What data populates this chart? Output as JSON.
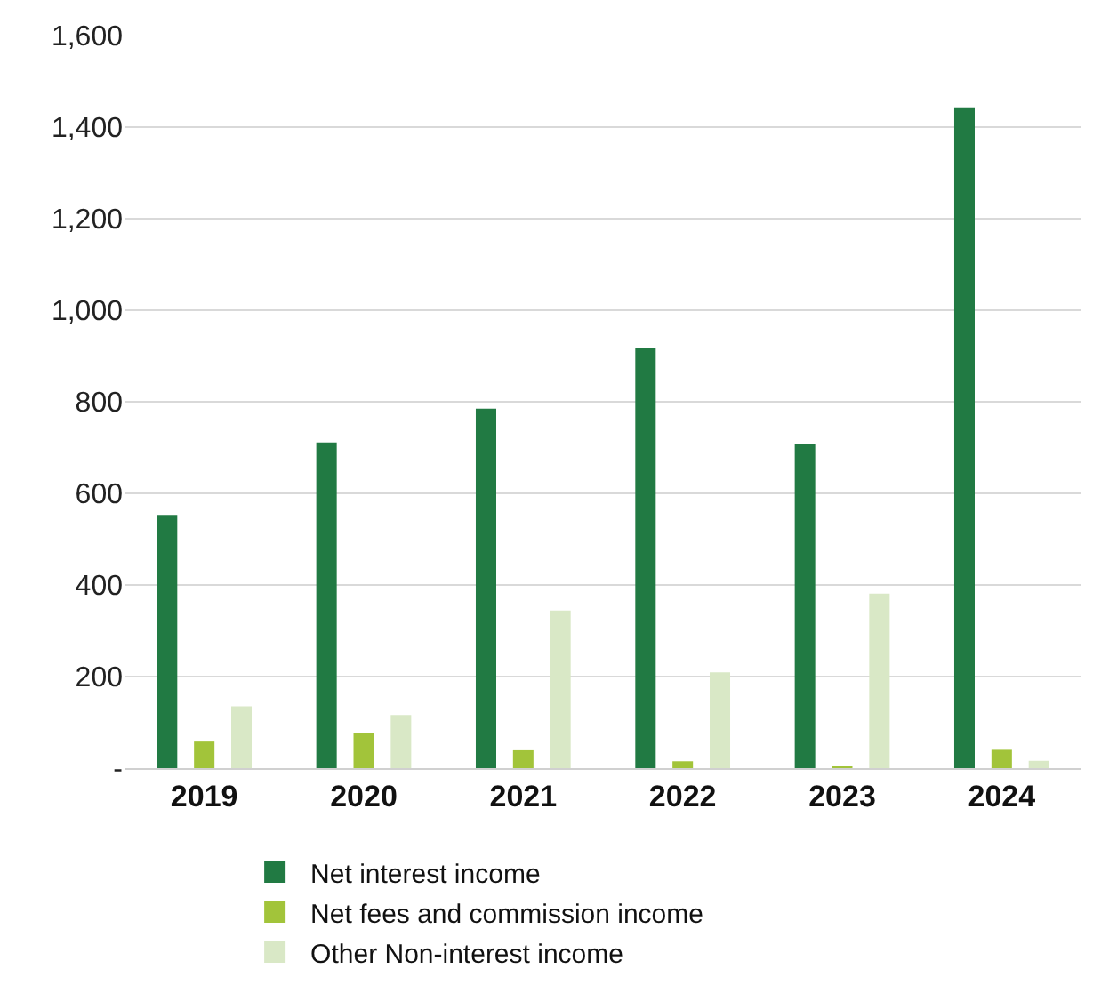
{
  "chart_data": {
    "type": "bar",
    "categories": [
      "2019",
      "2020",
      "2021",
      "2022",
      "2023",
      "2024"
    ],
    "series": [
      {
        "name": "Net interest income",
        "color": "#217a43",
        "values": [
          553,
          711,
          785,
          918,
          708,
          1443
        ]
      },
      {
        "name": "Net fees and commission income",
        "color": "#a2c43a",
        "values": [
          58,
          77,
          39,
          15,
          3,
          40
        ]
      },
      {
        "name": "Other Non-interest income",
        "color": "#d9e8c6",
        "values": [
          135,
          116,
          344,
          209,
          381,
          16
        ]
      }
    ],
    "ylim": [
      0,
      1600
    ],
    "yticks": [
      {
        "value": 0,
        "label": "-"
      },
      200,
      400,
      600,
      800,
      {
        "value": 1000,
        "label": "1,000"
      },
      {
        "value": 1200,
        "label": "1,200"
      },
      {
        "value": 1400,
        "label": "1,400"
      },
      {
        "value": 1600,
        "label": "1,600"
      }
    ],
    "grid": "y",
    "legend": "bottom"
  }
}
